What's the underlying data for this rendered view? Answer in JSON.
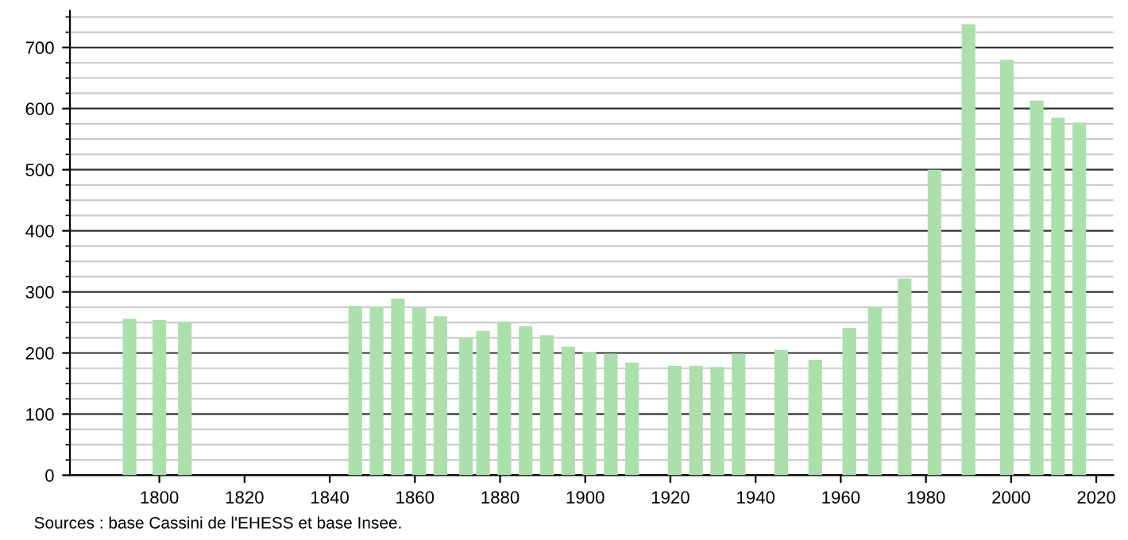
{
  "chart_data": {
    "type": "bar",
    "x": [
      1793,
      1800,
      1806,
      1846,
      1851,
      1856,
      1861,
      1866,
      1872,
      1876,
      1881,
      1886,
      1891,
      1896,
      1901,
      1906,
      1911,
      1921,
      1926,
      1931,
      1936,
      1946,
      1954,
      1962,
      1968,
      1975,
      1982,
      1990,
      1999,
      2006,
      2011,
      2016
    ],
    "values": [
      256,
      254,
      251,
      277,
      275,
      289,
      274,
      260,
      225,
      236,
      251,
      244,
      229,
      210,
      202,
      199,
      184,
      179,
      179,
      177,
      199,
      205,
      189,
      241,
      274,
      322,
      500,
      738,
      680,
      613,
      585,
      577
    ],
    "color": "#abdfab",
    "xlim": [
      1779,
      2024
    ],
    "xticks": [
      1800,
      1820,
      1840,
      1860,
      1880,
      1900,
      1920,
      1940,
      1960,
      1980,
      2000,
      2020
    ],
    "ylim": [
      0,
      760
    ],
    "yticks": [
      0,
      100,
      200,
      300,
      400,
      500,
      600,
      700
    ],
    "grid": "y",
    "annotations": [
      "Sources : base Cassini de l'EHESS et base Insee."
    ]
  }
}
